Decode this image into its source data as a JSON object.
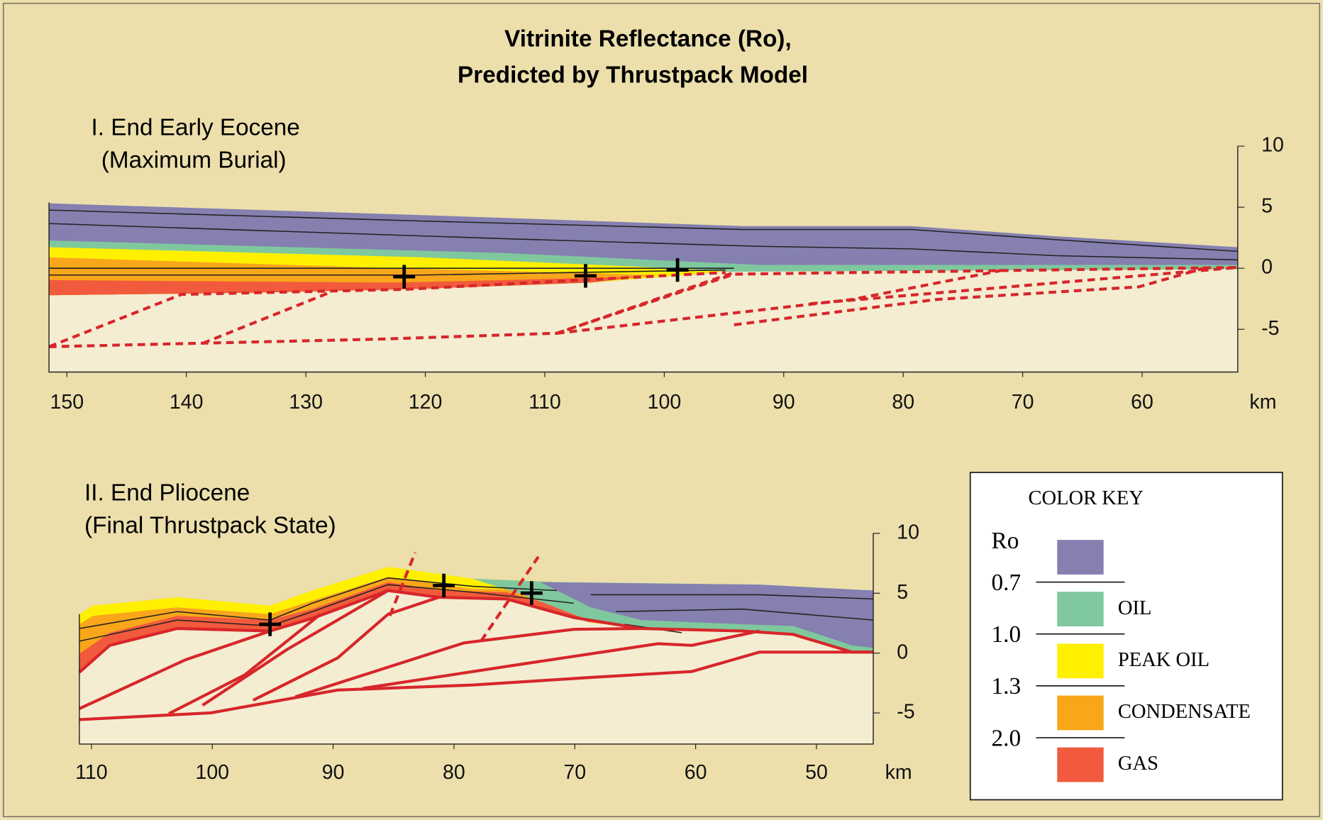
{
  "header": {
    "title_line1": "Vitrinite Reflectance (Ro),",
    "title_line2": "Predicted by Thrustpack Model"
  },
  "panels": [
    {
      "title": "I. End Early Eocene",
      "subtitle": "(Maximum Burial)",
      "xlim": [
        151.5,
        52
      ],
      "ylim": [
        -8.5,
        10.5
      ],
      "xticks": [
        150,
        140,
        130,
        120,
        110,
        100,
        90,
        80,
        70,
        60
      ],
      "yticks": [
        10,
        5,
        0,
        -5
      ],
      "x_unit": "km"
    },
    {
      "title": "II. End Pliocene",
      "subtitle": "(Final Thrustpack State)",
      "xlim": [
        111,
        45.3
      ],
      "ylim": [
        -7.6,
        10.3
      ],
      "xticks": [
        110,
        100,
        90,
        80,
        70,
        60,
        50
      ],
      "yticks": [
        10,
        5,
        0,
        -5
      ],
      "x_unit": "km"
    }
  ],
  "legend": {
    "title": "COLOR KEY",
    "parameter": "Ro",
    "thresholds": [
      "0.7",
      "1.0",
      "1.3",
      "2.0"
    ],
    "entries": [
      {
        "color": "#8580b0"
      },
      {
        "label": "OIL",
        "color": "#7fc89e"
      },
      {
        "label": "PEAK OIL",
        "color": "#fff000"
      },
      {
        "label": "CONDENSATE",
        "color": "#f9a61a"
      },
      {
        "label": "GAS",
        "color": "#f15a3c"
      }
    ]
  }
}
